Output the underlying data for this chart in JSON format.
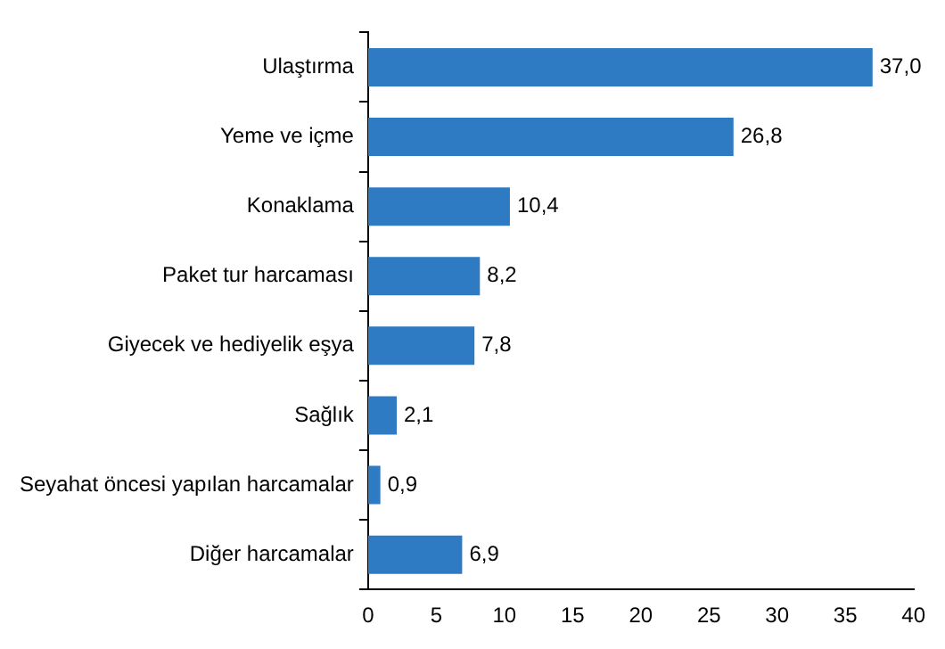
{
  "chart_data": {
    "type": "bar",
    "orientation": "horizontal",
    "categories": [
      "Ulaştırma",
      "Yeme ve içme",
      "Konaklama",
      "Paket tur harcaması",
      "Giyecek ve hediyelik eşya",
      "Sağlık",
      "Seyahat öncesi yapılan harcamalar",
      "Diğer harcamalar"
    ],
    "values": [
      37.0,
      26.8,
      10.4,
      8.2,
      7.8,
      2.1,
      0.9,
      6.9
    ],
    "value_labels": [
      "37,0",
      "26,8",
      "10,4",
      "8,2",
      "7,8",
      "2,1",
      "0,9",
      "6,9"
    ],
    "color": "#2e7bc4",
    "xlim": [
      0,
      40
    ],
    "xticks": [
      0,
      5,
      10,
      15,
      20,
      25,
      30,
      35,
      40
    ],
    "grid": false,
    "legend": false
  }
}
